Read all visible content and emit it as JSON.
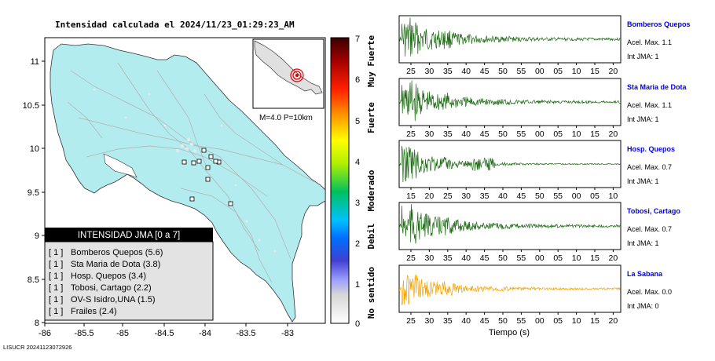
{
  "title": "Intensidad calculada el 2024/11/23_01:29:23_AM",
  "map": {
    "lat_ticks": [
      "11",
      "10.5",
      "10",
      "9.5",
      "9",
      "8.5",
      "8"
    ],
    "lon_ticks": [
      "-86",
      "-85.5",
      "-85",
      "-84.5",
      "-84",
      "-83.5",
      "-83"
    ],
    "inset_label": "M=4.0 P=10km"
  },
  "legend": {
    "title": "INTENSIDAD JMA [0 a 7]",
    "items": [
      {
        "level": "[ 1 ]",
        "station": "Bomberos Quepos (5.6)"
      },
      {
        "level": "[ 1 ]",
        "station": "Sta Maria de Dota (3.8)"
      },
      {
        "level": "[ 1 ]",
        "station": "Hosp. Quepos (3.4)"
      },
      {
        "level": "[ 1 ]",
        "station": "Tobosi, Cartago (2.2)"
      },
      {
        "level": "[ 1 ]",
        "station": "OV-S Isidro,UNA (1.5)"
      },
      {
        "level": "[ 1 ]",
        "station": "Frailes (2.4)"
      }
    ]
  },
  "colorbar": {
    "ticks": [
      "7",
      "6",
      "5",
      "4",
      "3",
      "2",
      "1",
      "0"
    ],
    "labels": [
      "Muy Fuerte",
      "Fuerte",
      "Moderado",
      "Debil",
      "No sentido"
    ]
  },
  "footer": "LISUCR 20241123072926",
  "x_label": "Tiempo (s)",
  "colors": {
    "wave": "#1b6a12",
    "wave_last": "#f5a300",
    "land": "#b3ecef",
    "station_name": "#0000ee",
    "cb_top": "#3a0000"
  },
  "traces": [
    {
      "station": "Bomberos Quepos",
      "accel": "Acel. Max. 1.1",
      "int": "Int JMA: 1",
      "ticks": [
        "25",
        "30",
        "35",
        "40",
        "45",
        "50",
        "55",
        "00",
        "05",
        "10",
        "15",
        "20"
      ]
    },
    {
      "station": "Sta Maria de Dota",
      "accel": "Acel. Max. 1.1",
      "int": "Int JMA: 1",
      "ticks": [
        "25",
        "30",
        "35",
        "40",
        "45",
        "50",
        "55",
        "00",
        "05",
        "10",
        "15",
        "20"
      ]
    },
    {
      "station": "Hosp. Quepos",
      "accel": "Acel. Max. 0.7",
      "int": "Int JMA: 1",
      "ticks": [
        "15",
        "20",
        "25",
        "30",
        "35",
        "40",
        "45",
        "50",
        "55",
        "00",
        "05",
        "10"
      ]
    },
    {
      "station": "Tobosi, Cartago",
      "accel": "Acel. Max. 0.7",
      "int": "Int JMA: 1",
      "ticks": [
        "25",
        "30",
        "35",
        "40",
        "45",
        "50",
        "55",
        "00",
        "05",
        "10",
        "15",
        "20"
      ]
    },
    {
      "station": "La Sabana",
      "accel": "Acel. Max. 0.0",
      "int": "Int JMA: 0",
      "ticks": [
        "25",
        "30",
        "35",
        "40",
        "45",
        "50",
        "55",
        "00",
        "05",
        "10",
        "15",
        "20"
      ]
    }
  ]
}
